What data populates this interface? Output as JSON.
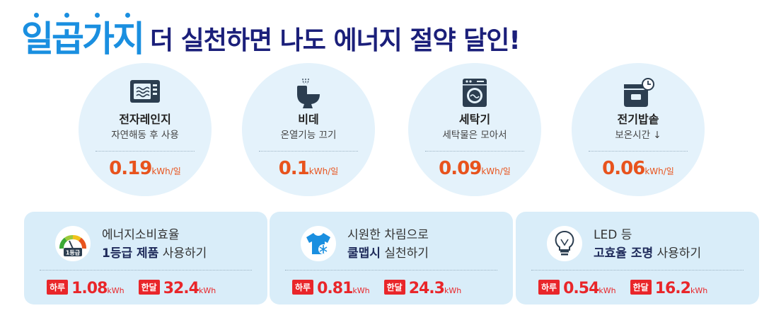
{
  "title": {
    "highlight": "일곱가지",
    "rest": "더 실천하면 나도 에너지 절약 달인!"
  },
  "colors": {
    "title_blue": "#1a8fe0",
    "title_navy": "#1b1f7a",
    "value_orange": "#e8531d",
    "value_red": "#e9262a",
    "circle_bg": "#e4f2fb",
    "box_bg": "#d9edf9"
  },
  "circles": [
    {
      "icon": "microwave-icon",
      "name": "전자레인지",
      "desc": "자연해동 후 사용",
      "value": "0.19",
      "unit": "kWh/일"
    },
    {
      "icon": "bidet-icon",
      "name": "비데",
      "desc": "온열기능 끄기",
      "value": "0.1",
      "unit": "kWh/일"
    },
    {
      "icon": "washing-machine-icon",
      "name": "세탁기",
      "desc": "세탁물은 모아서",
      "value": "0.09",
      "unit": "kWh/일"
    },
    {
      "icon": "rice-cooker-icon",
      "name": "전기밥솥",
      "desc": "보온시간 ↓",
      "value": "0.06",
      "unit": "kWh/일"
    }
  ],
  "boxes": [
    {
      "icon": "efficiency-gauge-icon",
      "gauge_label": "1등급",
      "line1": "에너지소비효율",
      "line2_bold": "1등급 제품",
      "line2_rest": " 사용하기",
      "day_label": "하루",
      "day_value": "1.08",
      "month_label": "한달",
      "month_value": "32.4",
      "unit": "kWh"
    },
    {
      "icon": "cool-shirt-icon",
      "line1": "시원한 차림으로",
      "line2_bold": "쿨맵시",
      "line2_rest": " 실천하기",
      "day_label": "하루",
      "day_value": "0.81",
      "month_label": "한달",
      "month_value": "24.3",
      "unit": "kWh"
    },
    {
      "icon": "led-bulb-icon",
      "line1": "LED 등",
      "line2_bold": "고효율 조명",
      "line2_rest": " 사용하기",
      "day_label": "하루",
      "day_value": "0.54",
      "month_label": "한달",
      "month_value": "16.2",
      "unit": "kWh"
    }
  ]
}
